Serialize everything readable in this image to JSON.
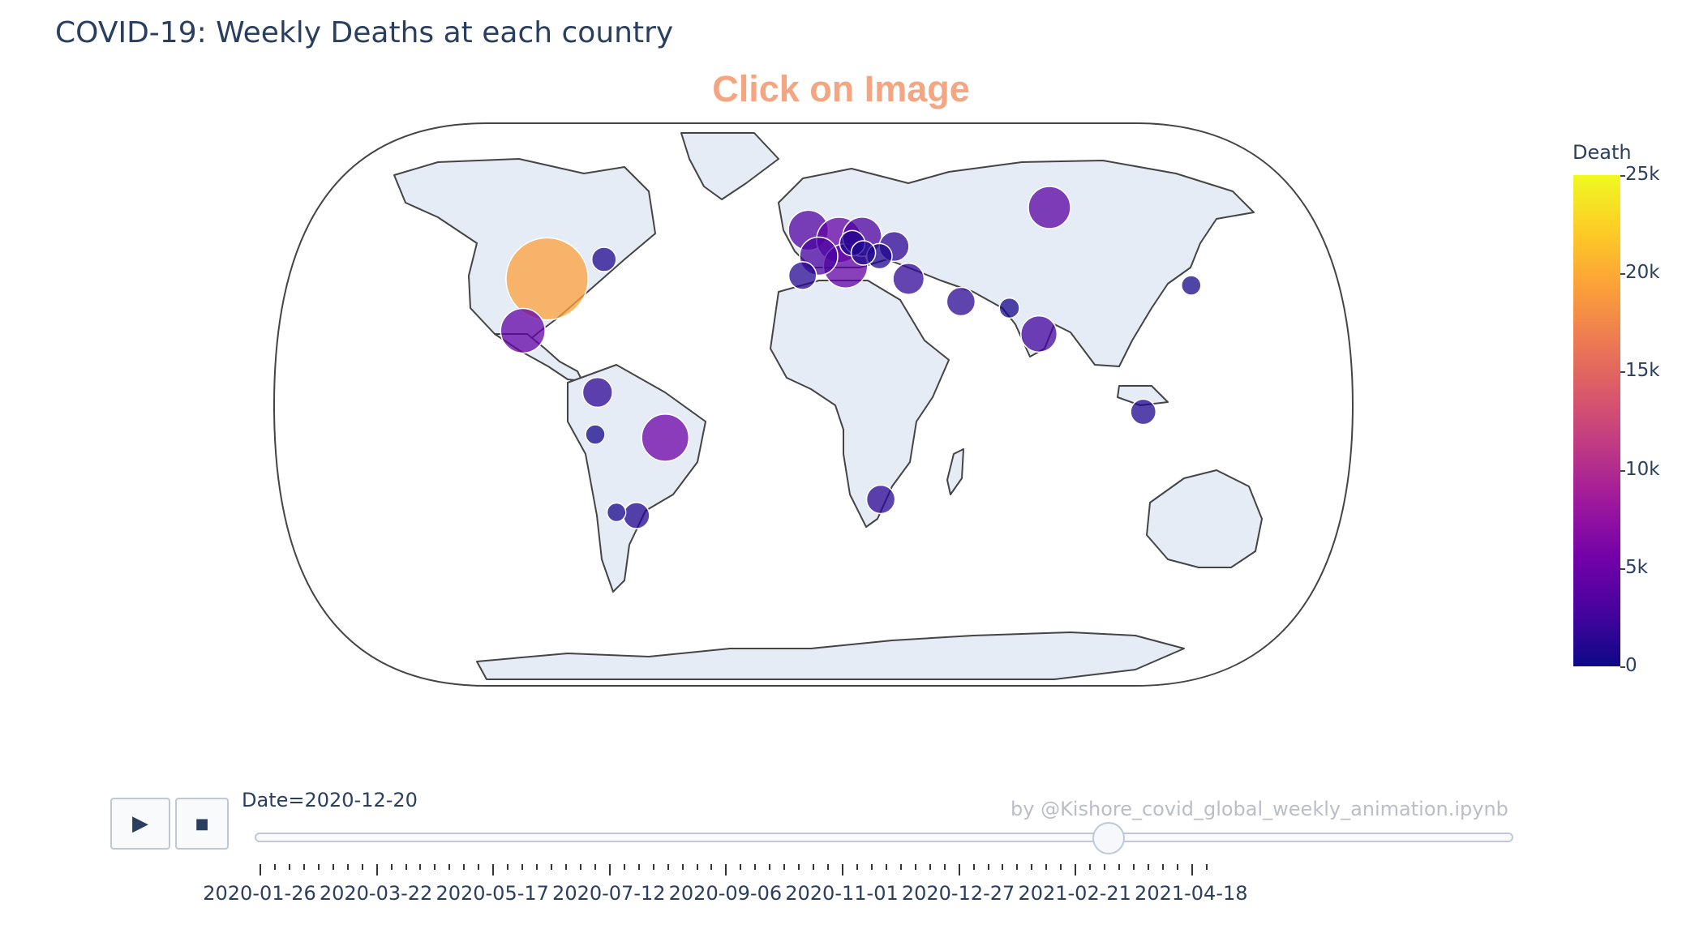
{
  "title": "COVID-19: Weekly Deaths at each country",
  "annotation": "Click on Image",
  "credit": "by @Kishore_covid_global_weekly_animation.ipynb",
  "colorbar": {
    "title": "Death",
    "ticks": [
      "25k",
      "20k",
      "15k",
      "10k",
      "5k",
      "0"
    ]
  },
  "controls": {
    "play_icon": "play-icon",
    "stop_icon": "stop-icon"
  },
  "slider": {
    "current_label": "Date=2020-12-20",
    "current_value": "2020-12-20",
    "tick_labels": [
      "2020-01-26",
      "2020-03-22",
      "2020-05-17",
      "2020-07-12",
      "2020-09-06",
      "2020-11-01",
      "2020-12-27",
      "2021-02-21",
      "2021-04-18"
    ]
  },
  "chart_data": {
    "type": "scatter",
    "title": "COVID-19: Weekly Deaths at each country",
    "color_scale": "plasma",
    "color_range": [
      0,
      25000
    ],
    "projection": "natural earth",
    "points": [
      {
        "country": "United States",
        "lon": -98,
        "lat": 39,
        "deaths": 19500
      },
      {
        "country": "Mexico",
        "lon": -102,
        "lat": 23,
        "deaths": 4500
      },
      {
        "country": "Brazil",
        "lon": -51,
        "lat": -10,
        "deaths": 5200
      },
      {
        "country": "Russia",
        "lon": 97,
        "lat": 61,
        "deaths": 3900
      },
      {
        "country": "India",
        "lon": 79,
        "lat": 22,
        "deaths": 2600
      },
      {
        "country": "United Kingdom",
        "lon": -2,
        "lat": 54,
        "deaths": 3400
      },
      {
        "country": "Germany",
        "lon": 10,
        "lat": 51,
        "deaths": 4700
      },
      {
        "country": "Italy",
        "lon": 12,
        "lat": 43,
        "deaths": 4400
      },
      {
        "country": "France",
        "lon": 2,
        "lat": 46,
        "deaths": 3000
      },
      {
        "country": "Poland",
        "lon": 19,
        "lat": 52,
        "deaths": 3200
      },
      {
        "country": "Ukraine",
        "lon": 31,
        "lat": 49,
        "deaths": 1500
      },
      {
        "country": "Iran",
        "lon": 53,
        "lat": 32,
        "deaths": 1300
      },
      {
        "country": "Colombia",
        "lon": -74,
        "lat": 4,
        "deaths": 1500
      },
      {
        "country": "Argentina",
        "lon": -64,
        "lat": -34,
        "deaths": 1000
      },
      {
        "country": "South Africa",
        "lon": 24,
        "lat": -29,
        "deaths": 1300
      },
      {
        "country": "Indonesia",
        "lon": 113,
        "lat": -2,
        "deaths": 900
      },
      {
        "country": "Turkey",
        "lon": 35,
        "lat": 39,
        "deaths": 1700
      },
      {
        "country": "Spain",
        "lon": -4,
        "lat": 40,
        "deaths": 1200
      },
      {
        "country": "Romania",
        "lon": 25,
        "lat": 46,
        "deaths": 900
      },
      {
        "country": "Czechia",
        "lon": 15,
        "lat": 50,
        "deaths": 900
      },
      {
        "country": "Hungary",
        "lon": 19,
        "lat": 47,
        "deaths": 800
      },
      {
        "country": "Peru",
        "lon": -75,
        "lat": -9,
        "deaths": 350
      },
      {
        "country": "Chile",
        "lon": -71,
        "lat": -33,
        "deaths": 300
      },
      {
        "country": "Canada",
        "lon": -79,
        "lat": 45,
        "deaths": 800
      },
      {
        "country": "Japan",
        "lon": 138,
        "lat": 37,
        "deaths": 350
      },
      {
        "country": "Pakistan",
        "lon": 70,
        "lat": 30,
        "deaths": 400
      }
    ]
  }
}
